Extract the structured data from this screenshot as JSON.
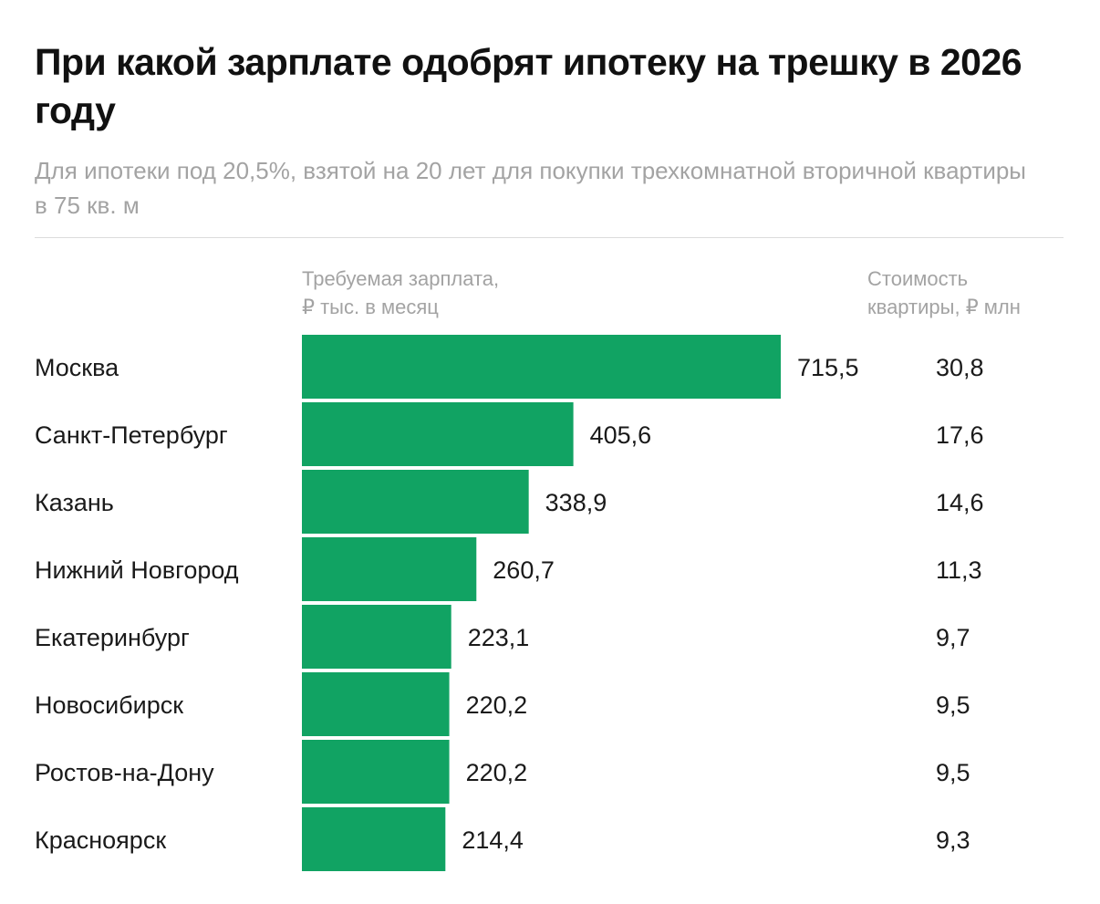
{
  "header": {
    "title": "При какой зарплате одобрят ипотеку на трешку в 2026 году",
    "subtitle": "Для ипотеки под 20,5%, взятой на 20 лет для покупки трехкомнатной вторичной квартиры в 75 кв. м"
  },
  "columns": {
    "salary_line1": "Требуемая зарплата,",
    "salary_line2": "₽ тыс. в месяц",
    "price_line1": "Стоимость",
    "price_line2": "квартиры, ₽ млн"
  },
  "colors": {
    "bar": "#11a363"
  },
  "chart_data": {
    "type": "bar",
    "orientation": "horizontal",
    "categories": [
      "Москва",
      "Санкт-Петербург",
      "Казань",
      "Нижний Новгород",
      "Екатеринбург",
      "Новосибирск",
      "Ростов-на-Дону",
      "Красноярск"
    ],
    "values": [
      715.5,
      405.6,
      338.9,
      260.7,
      223.1,
      220.2,
      220.2,
      214.4
    ],
    "value_labels": [
      "715,5",
      "405,6",
      "338,9",
      "260,7",
      "223,1",
      "220,2",
      "220,2",
      "214,4"
    ],
    "secondary_values": [
      30.8,
      17.6,
      14.6,
      11.3,
      9.7,
      9.5,
      9.5,
      9.3
    ],
    "secondary_labels": [
      "30,8",
      "17,6",
      "14,6",
      "11,3",
      "9,7",
      "9,5",
      "9,5",
      "9,3"
    ]
  }
}
